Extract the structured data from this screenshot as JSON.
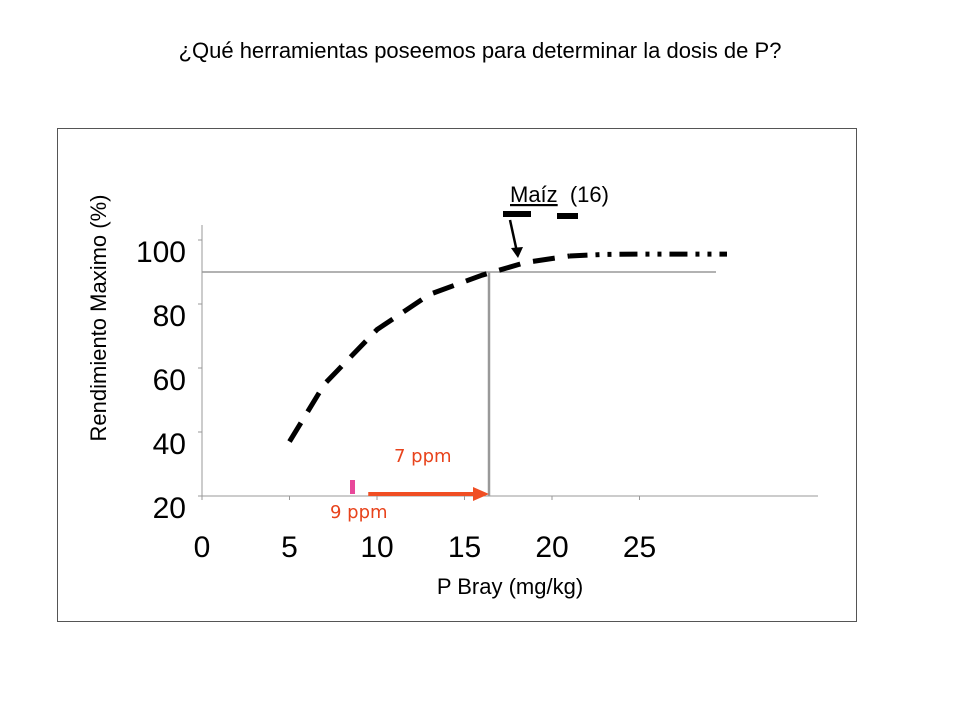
{
  "page": {
    "title": "¿Qué herramientas poseemos para determinar la dosis de P?"
  },
  "chart_data": {
    "type": "line",
    "title": "",
    "xlabel": "P Bray (mg/kg)",
    "ylabel": "Rendimiento Maximo (%)",
    "xlim": [
      0,
      35
    ],
    "ylim": [
      20,
      100
    ],
    "xticks": [
      0,
      5,
      10,
      15,
      20,
      25
    ],
    "yticks": [
      20,
      40,
      60,
      80,
      100
    ],
    "grid": false,
    "series": [
      {
        "name": "Maíz (16)",
        "style": "dashed",
        "color": "#000000",
        "x": [
          5,
          7,
          10,
          13,
          16,
          18.5,
          21
        ],
        "y": [
          37,
          55,
          72,
          83,
          89,
          93,
          95
        ]
      },
      {
        "name": "",
        "style": "dash-dot",
        "color": "#000000",
        "x": [
          21,
          23,
          25,
          27,
          30
        ],
        "y": [
          95,
          95.5,
          95.6,
          95.6,
          95.6
        ]
      }
    ],
    "reference_lines": {
      "y_value": 90,
      "x_value": 16.4,
      "color": "#999999"
    },
    "annotations": {
      "crop_label": "Maíz",
      "crop_number": "(16)",
      "label_7ppm": "7 ppm",
      "label_9ppm": "9 ppm",
      "marker_x": 8.6,
      "arrow_x_start": 9.5,
      "arrow_x_end": 16.4,
      "arrow_color": "#f04e23",
      "marker_color": "#e8489a"
    }
  }
}
